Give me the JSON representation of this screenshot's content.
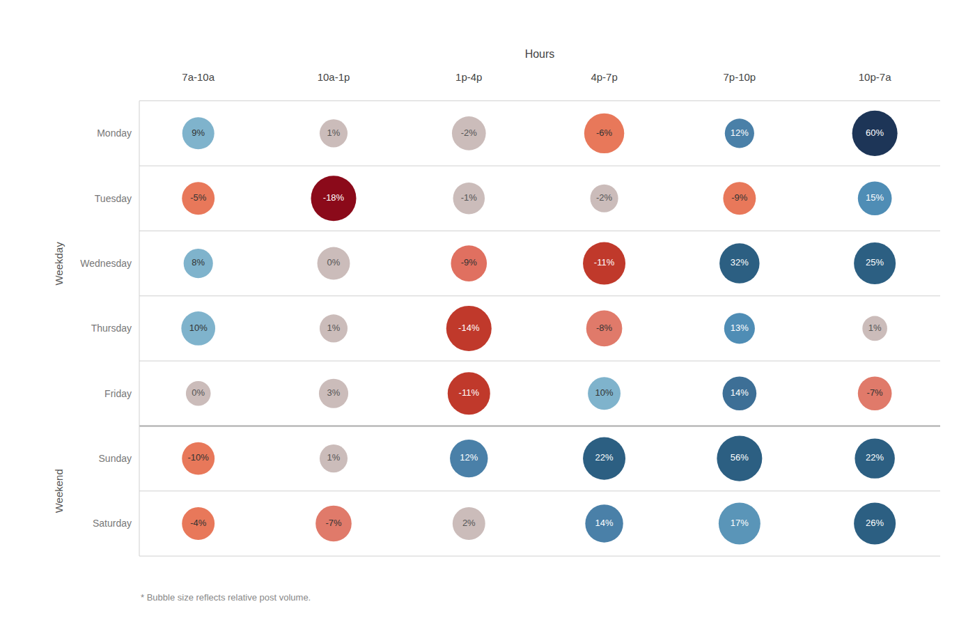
{
  "chart_data": {
    "type": "bubble",
    "xlabel": "Hours",
    "categories": [
      "7a-10a",
      "10a-1p",
      "1p-4p",
      "4p-7p",
      "7p-10p",
      "10p-7a"
    ],
    "rows": [
      "Monday",
      "Tuesday",
      "Wednesday",
      "Thursday",
      "Friday",
      "Sunday",
      "Saturday"
    ],
    "values": [
      [
        9,
        1,
        -2,
        -6,
        12,
        60
      ],
      [
        -5,
        -18,
        -1,
        -2,
        -9,
        15
      ],
      [
        8,
        0,
        -9,
        -11,
        32,
        25
      ],
      [
        10,
        1,
        -14,
        -8,
        13,
        1
      ],
      [
        0,
        3,
        -11,
        10,
        14,
        -7
      ],
      [
        -10,
        1,
        12,
        22,
        56,
        22
      ],
      [
        -4,
        -7,
        2,
        14,
        17,
        26
      ]
    ],
    "value_labels": [
      [
        "9%",
        "1%",
        "-2%",
        "-6%",
        "12%",
        "60%"
      ],
      [
        "-5%",
        "-18%",
        "-1%",
        "-2%",
        "-9%",
        "15%"
      ],
      [
        "8%",
        "0%",
        "-9%",
        "-11%",
        "32%",
        "25%"
      ],
      [
        "10%",
        "1%",
        "-14%",
        "-8%",
        "13%",
        "1%"
      ],
      [
        "0%",
        "3%",
        "-11%",
        "10%",
        "14%",
        "-7%"
      ],
      [
        "-10%",
        "1%",
        "12%",
        "22%",
        "56%",
        "22%"
      ],
      [
        "-4%",
        "-7%",
        "2%",
        "14%",
        "17%",
        "26%"
      ]
    ],
    "sizes": [
      [
        500,
        380,
        560,
        780,
        420,
        1000
      ],
      [
        520,
        1000,
        490,
        380,
        520,
        560
      ],
      [
        420,
        520,
        630,
        880,
        780,
        850
      ],
      [
        560,
        380,
        1000,
        630,
        460,
        300
      ],
      [
        300,
        420,
        880,
        520,
        560,
        560
      ],
      [
        520,
        380,
        700,
        880,
        1000,
        780
      ],
      [
        520,
        630,
        520,
        700,
        850,
        850
      ]
    ],
    "colors": [
      [
        "#7fb3cc",
        "#cbbcba",
        "#cbbcba",
        "#e8785a",
        "#4a80a8",
        "#1d3557"
      ],
      [
        "#e8785a",
        "#8b0a1a",
        "#cbbcba",
        "#cbbcba",
        "#e8785a",
        "#4f8db5"
      ],
      [
        "#7fb3cc",
        "#cbbcba",
        "#e07060",
        "#c0392b",
        "#2c5f82",
        "#2c5f82"
      ],
      [
        "#7fb3cc",
        "#cbbcba",
        "#c0392b",
        "#e07a6a",
        "#4f8db5",
        "#cbbcba"
      ],
      [
        "#cbbcba",
        "#cbbcba",
        "#c0392b",
        "#7fb3cc",
        "#3d6f96",
        "#e07a6a"
      ],
      [
        "#e8785a",
        "#cbbcba",
        "#4a80a8",
        "#2c5f82",
        "#2c5f82",
        "#2c5f82"
      ],
      [
        "#e8785a",
        "#e07a6a",
        "#cbbcba",
        "#4a80a8",
        "#5a95b8",
        "#2c5f82"
      ]
    ],
    "text_colors": [
      [
        "#333333",
        "#555555",
        "#555555",
        "#333333",
        "#ffffff",
        "#ffffff"
      ],
      [
        "#333333",
        "#ffffff",
        "#555555",
        "#555555",
        "#333333",
        "#ffffff"
      ],
      [
        "#333333",
        "#555555",
        "#333333",
        "#ffffff",
        "#ffffff",
        "#ffffff"
      ],
      [
        "#333333",
        "#555555",
        "#ffffff",
        "#333333",
        "#ffffff",
        "#555555"
      ],
      [
        "#555555",
        "#555555",
        "#ffffff",
        "#333333",
        "#ffffff",
        "#333333"
      ],
      [
        "#333333",
        "#555555",
        "#ffffff",
        "#ffffff",
        "#ffffff",
        "#ffffff"
      ],
      [
        "#333333",
        "#333333",
        "#555555",
        "#ffffff",
        "#ffffff",
        "#ffffff"
      ]
    ],
    "groups": [
      {
        "label": "Weekday",
        "rows": [
          "Monday",
          "Tuesday",
          "Wednesday",
          "Thursday",
          "Friday"
        ]
      },
      {
        "label": "Weekend",
        "rows": [
          "Sunday",
          "Saturday"
        ]
      }
    ],
    "footnote": "* Bubble size reflects relative post volume.",
    "grid": true,
    "legend": false,
    "data_labels": true
  }
}
